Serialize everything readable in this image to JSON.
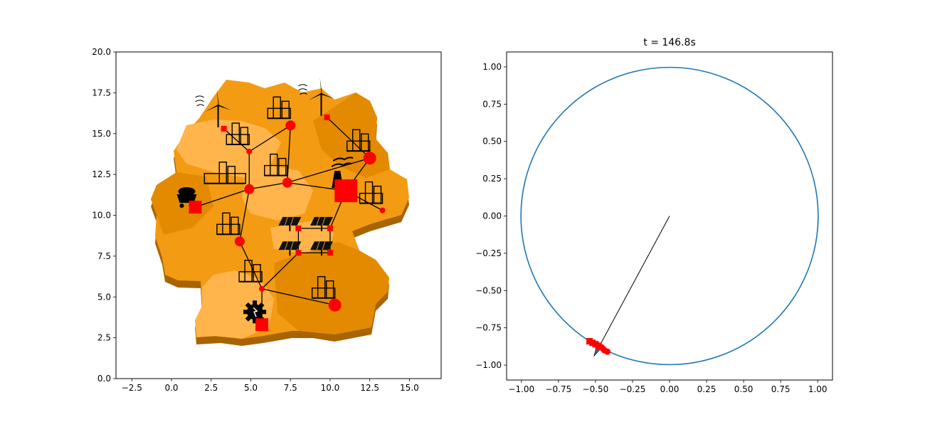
{
  "chart_data": [
    {
      "type": "scatter",
      "title": "",
      "xlabel": "",
      "ylabel": "",
      "xlim": [
        -3.5,
        17
      ],
      "ylim": [
        0,
        20
      ],
      "xticks": [
        "−2.5",
        "0.0",
        "2.5",
        "5.0",
        "7.5",
        "10.0",
        "12.5",
        "15.0"
      ],
      "xtick_values": [
        -2.5,
        0,
        2.5,
        5,
        7.5,
        10,
        12.5,
        15
      ],
      "yticks": [
        "0.0",
        "2.5",
        "5.0",
        "7.5",
        "10.0",
        "12.5",
        "15.0",
        "17.5",
        "20.0"
      ],
      "ytick_values": [
        0,
        2.5,
        5,
        7.5,
        10,
        12.5,
        15,
        17.5,
        20
      ],
      "background_map": "germany-states-3d",
      "colors": {
        "map_light": "#ffb44c",
        "map_mid": "#f39b13",
        "map_dark": "#e38a00",
        "map_side": "#a86400",
        "node": "#ff0000",
        "line": "#000000"
      },
      "nodes": [
        {
          "x": 3.3,
          "y": 15.3,
          "marker": "square",
          "size": "small",
          "icon": "wind-turbine-icon"
        },
        {
          "x": 9.8,
          "y": 16.0,
          "marker": "square",
          "size": "small",
          "icon": "wind-turbine-icon"
        },
        {
          "x": 4.9,
          "y": 13.9,
          "marker": "circle",
          "size": "small",
          "icon": "city-icon"
        },
        {
          "x": 7.5,
          "y": 15.5,
          "marker": "circle",
          "size": "medium",
          "icon": "city-icon"
        },
        {
          "x": 12.5,
          "y": 13.5,
          "marker": "circle",
          "size": "large",
          "icon": "city-icon"
        },
        {
          "x": 7.3,
          "y": 12.0,
          "marker": "circle",
          "size": "medium",
          "icon": "city-icon"
        },
        {
          "x": 11.0,
          "y": 11.5,
          "marker": "square",
          "size": "xlarge",
          "icon": "power-plant-icon"
        },
        {
          "x": 13.3,
          "y": 10.3,
          "marker": "circle",
          "size": "small",
          "icon": "city-icon"
        },
        {
          "x": 4.9,
          "y": 11.6,
          "marker": "circle",
          "size": "medium",
          "icon": "city-skyline-icon"
        },
        {
          "x": 1.5,
          "y": 10.5,
          "marker": "square",
          "size": "large",
          "icon": "coal-cart-icon"
        },
        {
          "x": 4.3,
          "y": 8.4,
          "marker": "circle",
          "size": "medium",
          "icon": "city-icon"
        },
        {
          "x": 8.0,
          "y": 9.2,
          "marker": "square",
          "size": "small",
          "icon": "solar-panel-icon"
        },
        {
          "x": 10.0,
          "y": 9.2,
          "marker": "square",
          "size": "small",
          "icon": "solar-panel-icon"
        },
        {
          "x": 8.0,
          "y": 7.7,
          "marker": "square",
          "size": "small",
          "icon": "solar-panel-icon"
        },
        {
          "x": 10.0,
          "y": 7.7,
          "marker": "square",
          "size": "small",
          "icon": "solar-panel-icon"
        },
        {
          "x": 5.7,
          "y": 5.5,
          "marker": "circle",
          "size": "small",
          "icon": "city-icon"
        },
        {
          "x": 10.3,
          "y": 4.5,
          "marker": "circle",
          "size": "large",
          "icon": "city-icon"
        },
        {
          "x": 5.7,
          "y": 3.3,
          "marker": "square",
          "size": "large",
          "icon": "gear-icon"
        }
      ],
      "edges": [
        [
          0,
          2
        ],
        [
          2,
          3
        ],
        [
          1,
          4
        ],
        [
          2,
          8
        ],
        [
          3,
          5
        ],
        [
          5,
          8
        ],
        [
          5,
          4
        ],
        [
          5,
          6
        ],
        [
          6,
          4
        ],
        [
          6,
          7
        ],
        [
          9,
          8
        ],
        [
          8,
          10
        ],
        [
          6,
          12
        ],
        [
          10,
          15
        ],
        [
          15,
          13
        ],
        [
          11,
          12
        ],
        [
          13,
          14
        ],
        [
          11,
          13
        ],
        [
          12,
          14
        ],
        [
          15,
          17
        ],
        [
          15,
          16
        ]
      ]
    },
    {
      "type": "line",
      "title": "t = 146.8s",
      "xlabel": "",
      "ylabel": "",
      "xlim": [
        -1.1,
        1.1
      ],
      "ylim": [
        -1.1,
        1.1
      ],
      "xticks": [
        "−1.00",
        "−0.75",
        "−0.50",
        "−0.25",
        "0.00",
        "0.25",
        "0.50",
        "0.75",
        "1.00"
      ],
      "xtick_values": [
        -1,
        -0.75,
        -0.5,
        -0.25,
        0,
        0.25,
        0.5,
        0.75,
        1
      ],
      "yticks": [
        "−1.00",
        "−0.75",
        "−0.50",
        "−0.25",
        "0.00",
        "0.25",
        "0.50",
        "0.75",
        "1.00"
      ],
      "ytick_values": [
        -1,
        -0.75,
        -0.5,
        -0.25,
        0,
        0.25,
        0.5,
        0.75,
        1
      ],
      "circle": {
        "center": [
          0,
          0
        ],
        "radius": 1.0,
        "color": "#1f77b4"
      },
      "arrow": {
        "from": [
          0,
          0
        ],
        "to": [
          -0.51,
          -0.94
        ],
        "color": "#000000"
      },
      "points": [
        {
          "x": -0.54,
          "y": -0.84,
          "marker": "square"
        },
        {
          "x": -0.52,
          "y": -0.85,
          "marker": "square"
        },
        {
          "x": -0.5,
          "y": -0.86,
          "marker": "square"
        },
        {
          "x": -0.48,
          "y": -0.87,
          "marker": "square"
        },
        {
          "x": -0.46,
          "y": -0.88,
          "marker": "circle"
        },
        {
          "x": -0.45,
          "y": -0.89,
          "marker": "circle"
        },
        {
          "x": -0.44,
          "y": -0.9,
          "marker": "circle"
        },
        {
          "x": -0.42,
          "y": -0.91,
          "marker": "circle"
        }
      ],
      "point_color": "#ff0000"
    }
  ]
}
